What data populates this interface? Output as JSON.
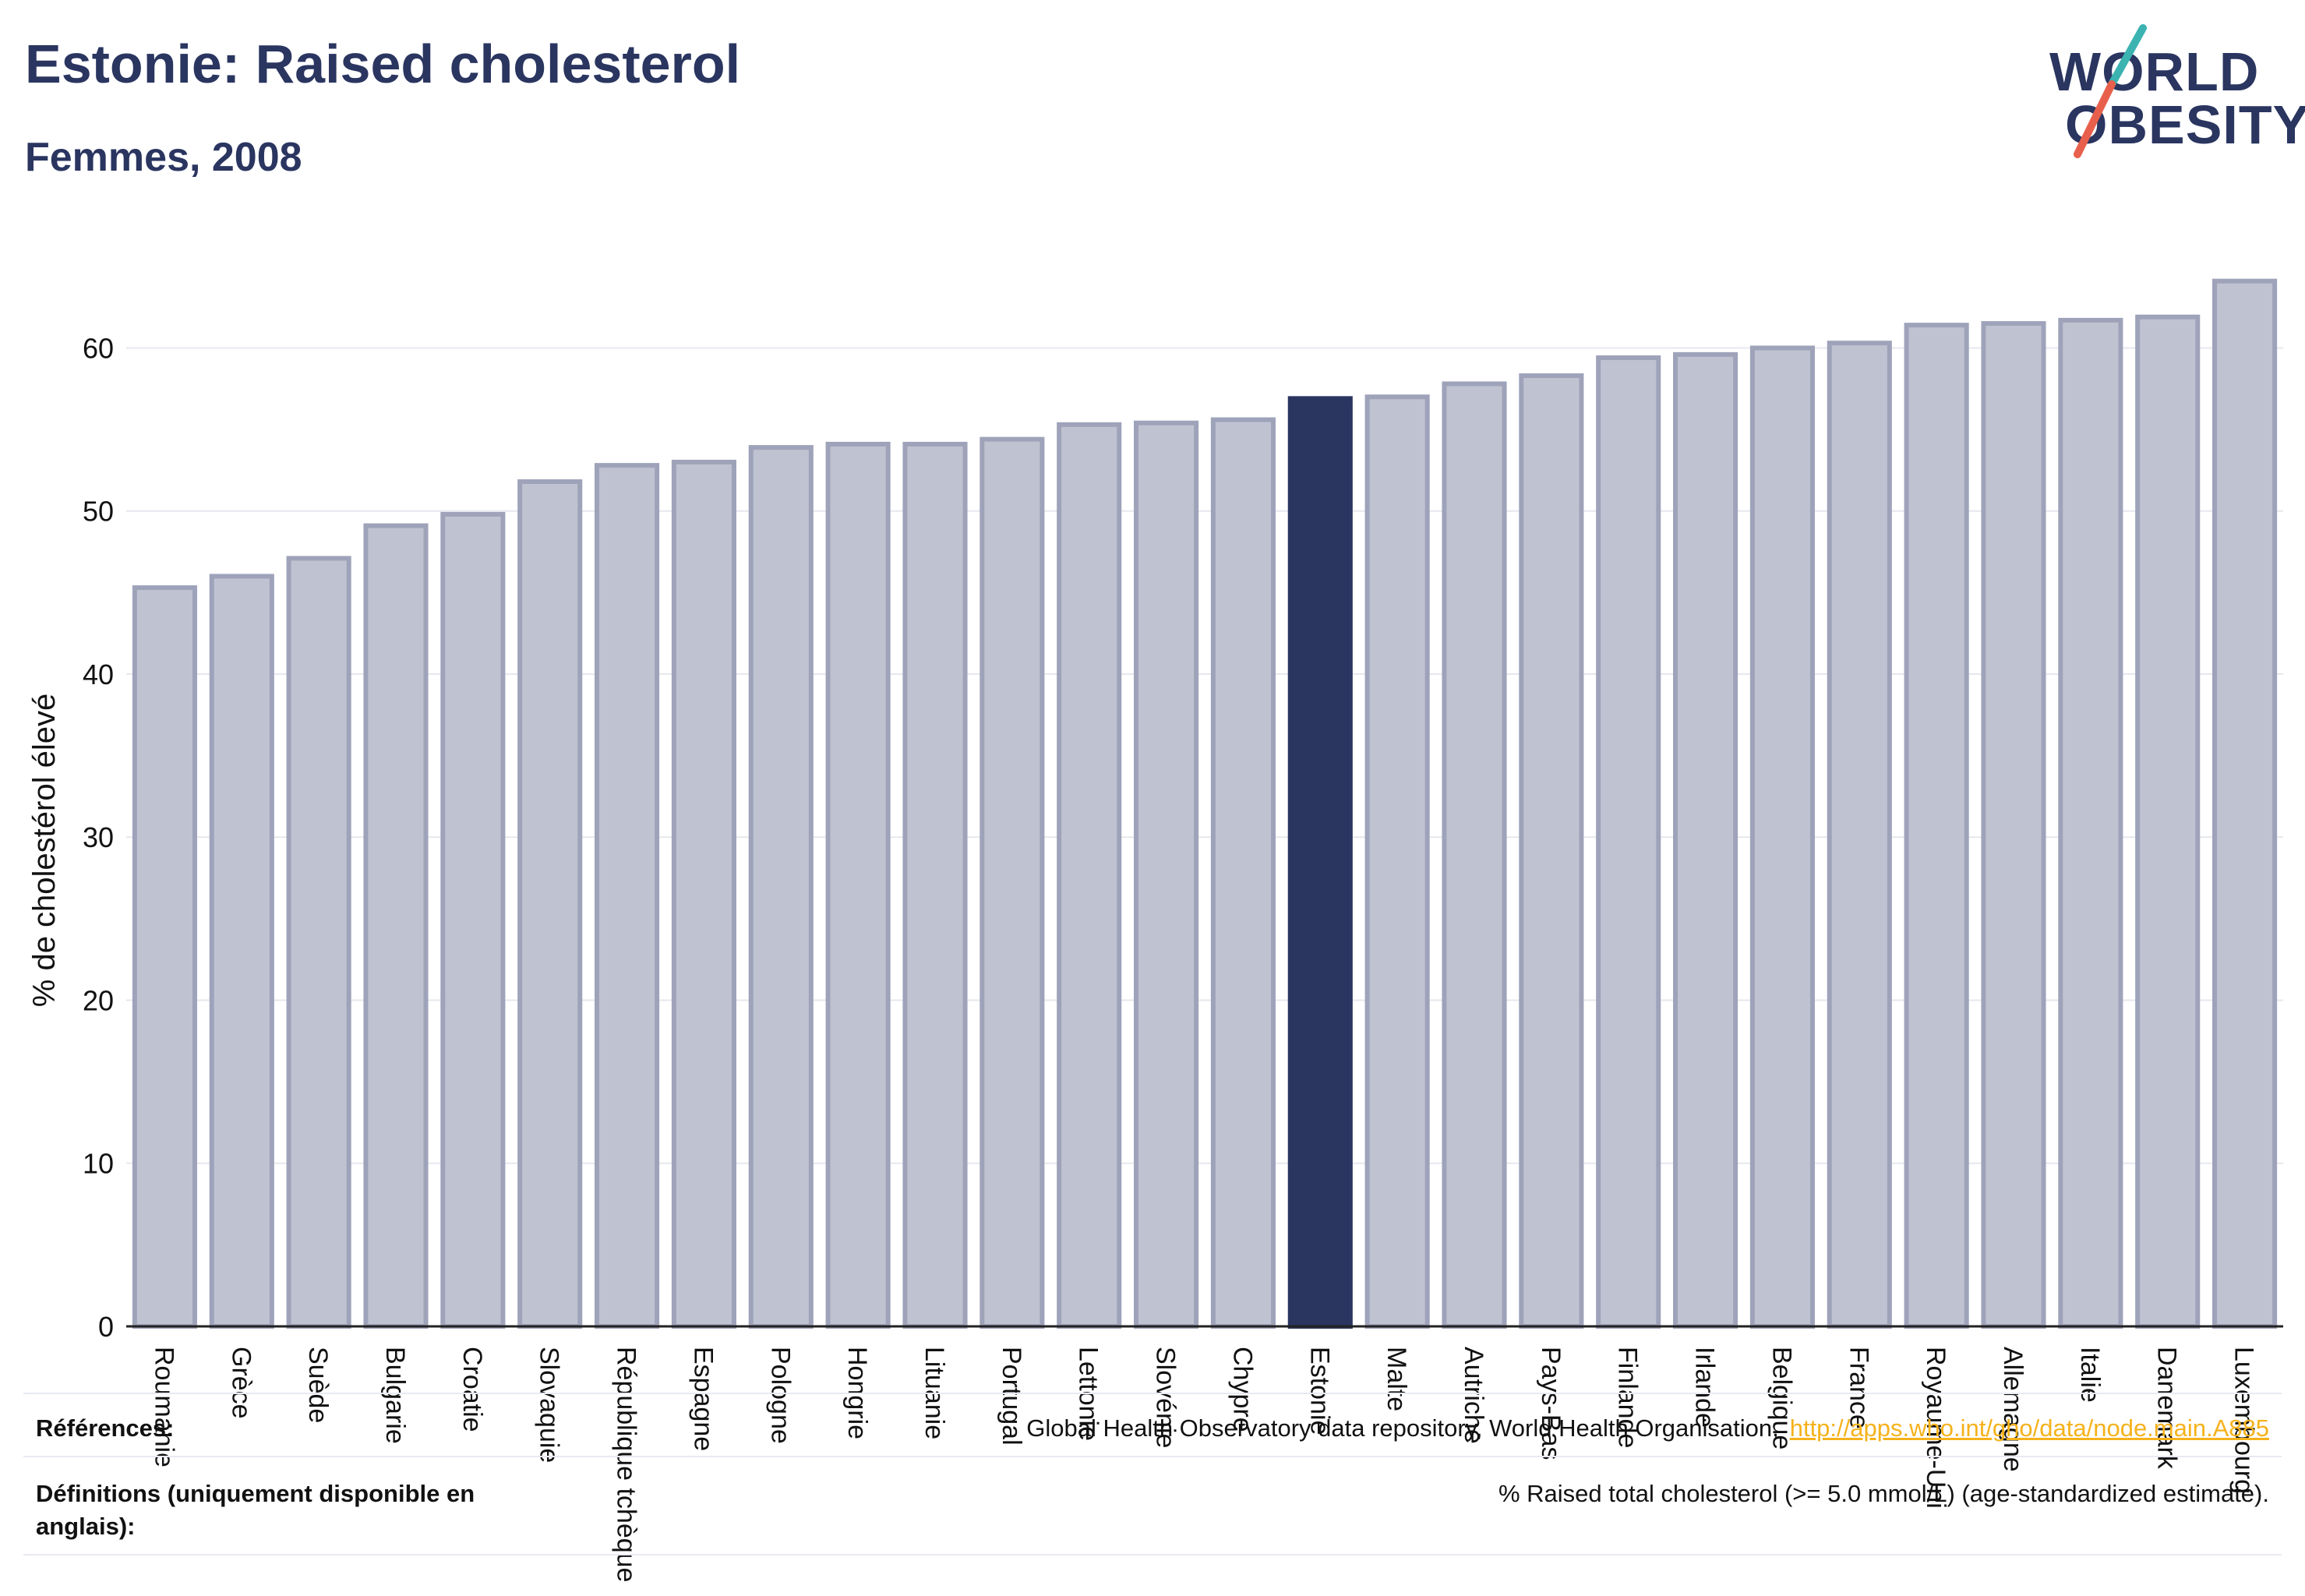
{
  "header": {
    "title": "Estonie: Raised cholesterol",
    "subtitle": "Femmes, 2008"
  },
  "logo": {
    "line1": "WORLD",
    "line2": "OBESITY",
    "slash_colors": [
      "#3bb3b1",
      "#e8604c"
    ]
  },
  "colors": {
    "highlight": "#2a3560",
    "bar_fill": "#bfc3d1",
    "bar_stroke": "#9ea3ba",
    "text": "#2a3560"
  },
  "chart_data": {
    "type": "bar",
    "ylabel": "% de cholestérol élevé",
    "xlabel": "",
    "ylim": [
      0,
      67
    ],
    "yticks": [
      0,
      10,
      20,
      30,
      40,
      50,
      60
    ],
    "grid": true,
    "highlight": "Estonie",
    "categories": [
      "Roumanie",
      "Grèce",
      "Suède",
      "Bulgarie",
      "Croatie",
      "Slovaquie",
      "République tchèque",
      "Espagne",
      "Pologne",
      "Hongrie",
      "Lituanie",
      "Portugal",
      "Lettonie",
      "Slovénie",
      "Chypre",
      "Estonie",
      "Malte",
      "Autriche",
      "Pays-Bas",
      "Finlande",
      "Irlande",
      "Belgique",
      "France",
      "Royaume-Uni",
      "Allemagne",
      "Italie",
      "Danemark",
      "Luxembourg"
    ],
    "values": [
      45.3,
      46.0,
      47.1,
      49.1,
      49.8,
      51.8,
      52.8,
      53.0,
      53.9,
      54.1,
      54.1,
      54.4,
      55.3,
      55.4,
      55.6,
      56.9,
      57.0,
      57.8,
      58.3,
      59.4,
      59.6,
      60.0,
      60.3,
      61.4,
      61.5,
      61.7,
      61.9,
      64.1
    ]
  },
  "footer": {
    "references_label": "Références:",
    "references_text": "Global Health Observatory data repository, World Health Organisation,",
    "references_link": "http://apps.who.int/gho/data/node.main.A885",
    "definitions_label": "Définitions (uniquement disponible en anglais):",
    "definitions_text": "% Raised total cholesterol (>= 5.0 mmol/L) (age-standardized estimate)."
  }
}
